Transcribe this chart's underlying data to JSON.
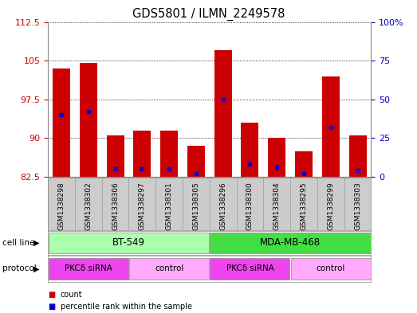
{
  "title": "GDS5801 / ILMN_2249578",
  "samples": [
    "GSM1338298",
    "GSM1338302",
    "GSM1338306",
    "GSM1338297",
    "GSM1338301",
    "GSM1338305",
    "GSM1338296",
    "GSM1338300",
    "GSM1338304",
    "GSM1338295",
    "GSM1338299",
    "GSM1338303"
  ],
  "counts": [
    103.5,
    104.5,
    90.5,
    91.5,
    91.5,
    88.5,
    107.0,
    93.0,
    90.0,
    87.5,
    102.0,
    90.5
  ],
  "percentile_ranks": [
    40,
    42,
    5,
    5,
    5,
    2,
    50,
    8,
    6,
    2,
    32,
    4
  ],
  "ymin": 82.5,
  "ymax": 112.5,
  "yticks": [
    82.5,
    90,
    97.5,
    105,
    112.5
  ],
  "right_yticks": [
    0,
    25,
    50,
    75,
    100
  ],
  "bar_color": "#cc0000",
  "marker_color": "#0000cc",
  "cell_line_bt549_label": "BT-549",
  "cell_line_bt549_color": "#aaffaa",
  "cell_line_mda_label": "MDA-MB-468",
  "cell_line_mda_color": "#44dd44",
  "protocol_pkc_label": "PKCδ siRNA",
  "protocol_ctrl_label": "control",
  "protocol_pkc_color": "#ee44ee",
  "protocol_ctrl_color": "#ffaaff",
  "sample_bg_color": "#cccccc",
  "xlabel_color": "#cc0000",
  "ylabel_right_color": "#0000cc"
}
